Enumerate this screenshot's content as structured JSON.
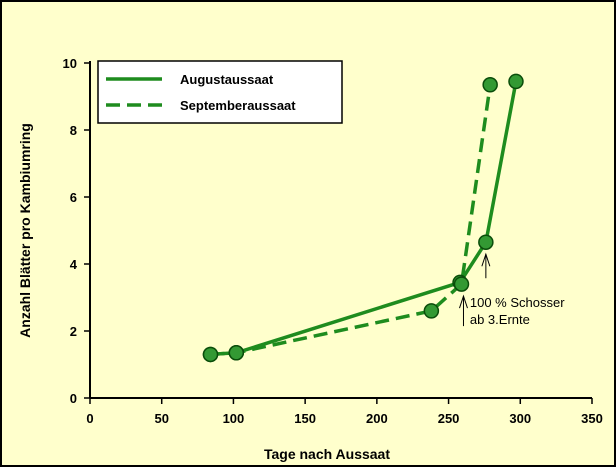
{
  "chart_data": {
    "type": "line",
    "title": "",
    "xlabel": "Tage nach Aussaat",
    "ylabel": "Anzahl Blätter pro Kambiumring",
    "xlim": [
      0,
      350
    ],
    "ylim": [
      0,
      10
    ],
    "xticks": [
      "0",
      "50",
      "100",
      "150",
      "200",
      "250",
      "300",
      "350"
    ],
    "yticks": [
      "0",
      "2",
      "4",
      "6",
      "8",
      "10"
    ],
    "grid": false,
    "legend_position": "top-left",
    "colors": {
      "series": "#1e8c1e",
      "marker_fill": "#339933",
      "background": "#ffffcc"
    },
    "series": [
      {
        "name": "Augustaussaat",
        "style": "solid",
        "points": [
          [
            84,
            1.3
          ],
          [
            102,
            1.35
          ],
          [
            258,
            3.45
          ],
          [
            276,
            4.65
          ],
          [
            297,
            9.45
          ]
        ]
      },
      {
        "name": "Septemberaussaat",
        "style": "dashed",
        "points": [
          [
            84,
            1.3
          ],
          [
            102,
            1.35
          ],
          [
            238,
            2.6
          ],
          [
            259,
            3.4
          ],
          [
            279,
            9.35
          ]
        ]
      }
    ],
    "annotations": [
      {
        "lines": [
          "100 % Schosser",
          "ab 3.Ernte"
        ],
        "x": 276,
        "y": 4.65,
        "target_x": 259,
        "target_y": 3.4
      }
    ]
  }
}
